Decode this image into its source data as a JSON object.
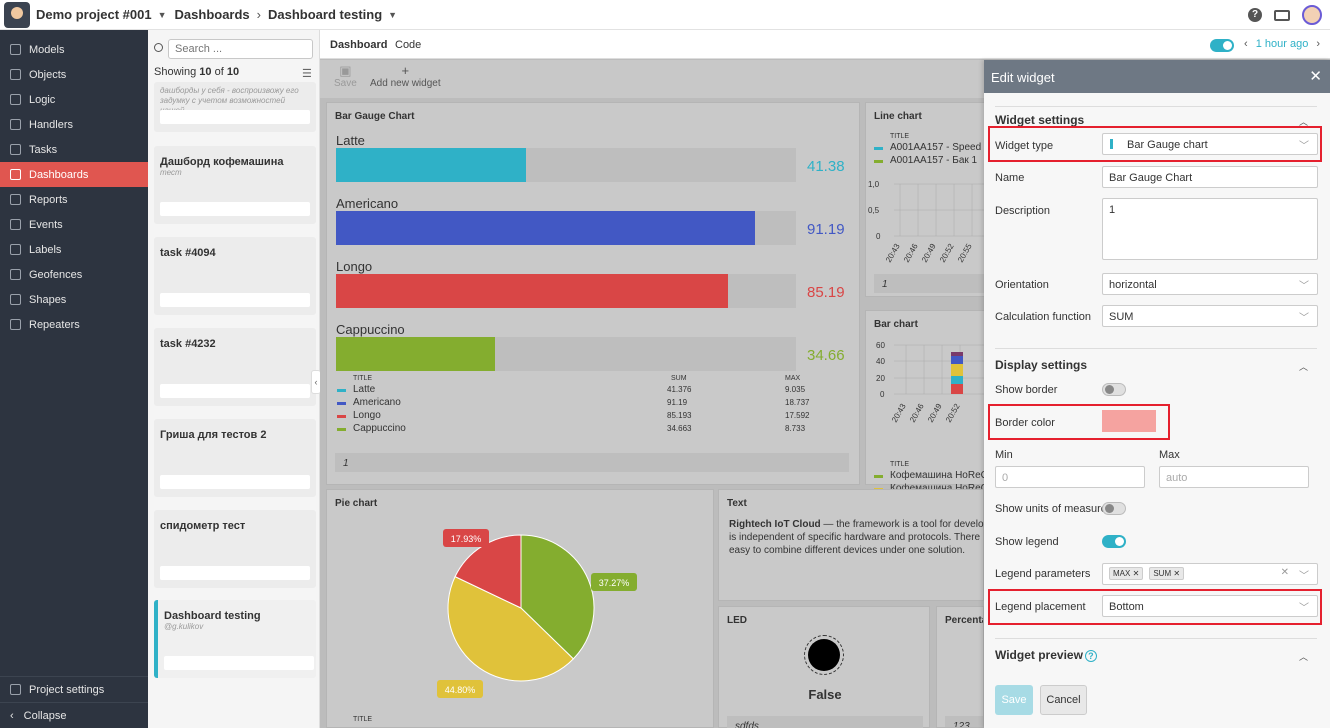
{
  "topbar": {
    "project": "Demo project #001",
    "crumb1": "Dashboards",
    "crumb2": "Dashboard testing",
    "help": "?"
  },
  "sidebar": {
    "items": [
      "Models",
      "Objects",
      "Logic",
      "Handlers",
      "Tasks",
      "Dashboards",
      "Reports",
      "Events",
      "Labels",
      "Geofences",
      "Shapes",
      "Repeaters"
    ],
    "active": "Dashboards",
    "project_settings": "Project settings",
    "collapse": "Collapse"
  },
  "list": {
    "search_placeholder": "Search ...",
    "showing_prefix": "Showing",
    "showing_count": "10",
    "showing_of": "of",
    "showing_total": "10",
    "cards": [
      {
        "title": "",
        "subtitle": "дашборды у себя - воспроизвожу его задумку с учетом возможностей нашей..."
      },
      {
        "title": "Дашборд кофемашина",
        "subtitle": "тест"
      },
      {
        "title": "task #4094",
        "subtitle": ""
      },
      {
        "title": "task #4232",
        "subtitle": ""
      },
      {
        "title": "Гриша для тестов 2",
        "subtitle": ""
      },
      {
        "title": "спидометр тест",
        "subtitle": ""
      },
      {
        "title": "Dashboard testing",
        "subtitle": "@g.kulikov"
      }
    ],
    "fab": "+"
  },
  "main": {
    "tabs": [
      "Dashboard",
      "Code"
    ],
    "time": "1 hour ago",
    "toolbar": {
      "save": "Save",
      "add": "Add new widget"
    }
  },
  "bar_gauge": {
    "title": "Bar Gauge Chart",
    "legend_head": {
      "title": "TITLE",
      "sum": "SUM",
      "max": "MAX"
    },
    "footer": "1",
    "items": [
      {
        "name": "Latte",
        "label": "41.38",
        "value": 41.38,
        "sum": "41.376",
        "max": "9.035",
        "color": "#2fb1c7"
      },
      {
        "name": "Americano",
        "label": "91.19",
        "value": 91.19,
        "sum": "91.19",
        "max": "18.737",
        "color": "#4258c4"
      },
      {
        "name": "Longo",
        "label": "85.19",
        "value": 85.19,
        "sum": "85.193",
        "max": "17.592",
        "color": "#d94646"
      },
      {
        "name": "Cappuccino",
        "label": "34.66",
        "value": 34.66,
        "sum": "34.663",
        "max": "8.733",
        "color": "#84ad2f"
      }
    ]
  },
  "chart_data": [
    {
      "type": "line",
      "title": "Line chart",
      "legend_title": "TITLE",
      "series": [
        {
          "name": "A001AA157 - Speed",
          "color": "#2fb1c7"
        },
        {
          "name": "A001AA157 - Бак 1",
          "color": "#84ad2f"
        }
      ],
      "y_ticks": [
        "1,0",
        "0,5",
        "0"
      ],
      "x_ticks": [
        "20:43",
        "20:46",
        "20:49",
        "20:52",
        "20:55"
      ],
      "footer": "1"
    },
    {
      "type": "bar",
      "title": "Bar chart",
      "legend_title": "TITLE",
      "series": [
        {
          "name": "Кофемашина HoReCa",
          "color": "#84ad2f"
        },
        {
          "name": "Кофемашина HoReCa",
          "color": "#e0c23a"
        }
      ],
      "y_ticks": [
        "60",
        "40",
        "20",
        "0"
      ],
      "x_ticks": [
        "20:43",
        "20:46",
        "20:49",
        "20:52"
      ]
    },
    {
      "type": "pie",
      "title": "Pie chart",
      "legend_title": "TITLE",
      "slices": [
        {
          "label": "37.27%",
          "value": 37.27,
          "color": "#84ad2f"
        },
        {
          "label": "44.80%",
          "value": 44.8,
          "color": "#e0c23a"
        },
        {
          "label": "17.93%",
          "value": 17.93,
          "color": "#d94646"
        }
      ]
    }
  ],
  "text_widget": {
    "title": "Text",
    "bold": "Rightech IoT Cloud",
    "rest": " — the framework is a tool for develop",
    "line2": "is independent of specific hardware and protocols. There",
    "line3": "easy to combine different devices under one solution."
  },
  "led_widget": {
    "title": "LED",
    "state": "False",
    "footer": "sdfds"
  },
  "percent_widget": {
    "title": "Percenta",
    "footer": "123"
  },
  "edit_panel": {
    "title": "Edit widget",
    "widget_settings": "Widget settings",
    "widget_type_label": "Widget type",
    "widget_type_value": "Bar Gauge chart",
    "name_label": "Name",
    "name_value": "Bar Gauge Chart",
    "description_label": "Description",
    "description_value": "1",
    "orientation_label": "Orientation",
    "orientation_value": "horizontal",
    "calc_label": "Calculation function",
    "calc_value": "SUM",
    "display_settings": "Display settings",
    "show_border": "Show border",
    "border_color_label": "Border color",
    "border_color": "#f5a3a0",
    "min_label": "Min",
    "min_placeholder": "0",
    "max_label": "Max",
    "max_placeholder": "auto",
    "show_units": "Show units of measure",
    "show_legend": "Show legend",
    "legend_params_label": "Legend parameters",
    "legend_params": [
      "MAX",
      "SUM"
    ],
    "legend_placement_label": "Legend placement",
    "legend_placement_value": "Bottom",
    "widget_preview": "Widget preview",
    "save": "Save",
    "cancel": "Cancel"
  }
}
